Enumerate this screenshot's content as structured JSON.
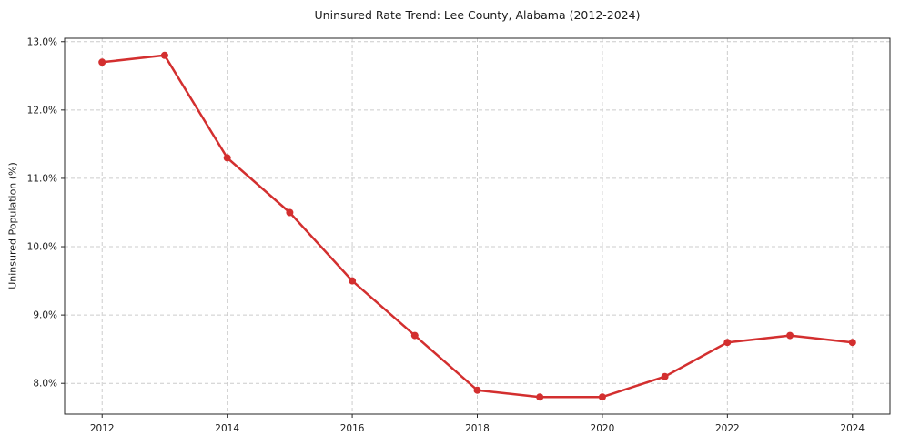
{
  "page": {
    "background": "#ffffff"
  },
  "chart_data": {
    "type": "line",
    "title": "Uninsured Rate Trend: Lee County, Alabama (2012-2024)",
    "xlabel": "",
    "ylabel": "Uninsured Population (%)",
    "x": [
      2012,
      2013,
      2014,
      2015,
      2016,
      2017,
      2018,
      2019,
      2020,
      2021,
      2022,
      2023,
      2024
    ],
    "series": [
      {
        "name": "Uninsured rate",
        "values": [
          12.7,
          12.8,
          11.3,
          10.5,
          9.5,
          8.7,
          7.9,
          7.8,
          7.8,
          8.1,
          8.6,
          8.7,
          8.6
        ],
        "color": "#d32f2f",
        "marker": "circle",
        "marker_radius": 4,
        "line_width": 2.5
      }
    ],
    "xticks": {
      "values": [
        2012,
        2014,
        2016,
        2018,
        2020,
        2022,
        2024
      ],
      "labels": [
        "2012",
        "2014",
        "2016",
        "2018",
        "2020",
        "2022",
        "2024"
      ]
    },
    "yticks": {
      "values": [
        8.0,
        9.0,
        10.0,
        11.0,
        12.0,
        13.0
      ],
      "labels": [
        "8.0%",
        "9.0%",
        "10.0%",
        "11.0%",
        "12.0%",
        "13.0%"
      ]
    },
    "xlim": [
      2011.4,
      2024.6
    ],
    "ylim": [
      7.55,
      13.05
    ],
    "grid": true,
    "grid_style": "dashed",
    "grid_color": "#cccccc",
    "axis_color": "#262626",
    "tick_label_color": "#1a1a1a",
    "legend": "none",
    "plot_background": "#ffffff"
  }
}
